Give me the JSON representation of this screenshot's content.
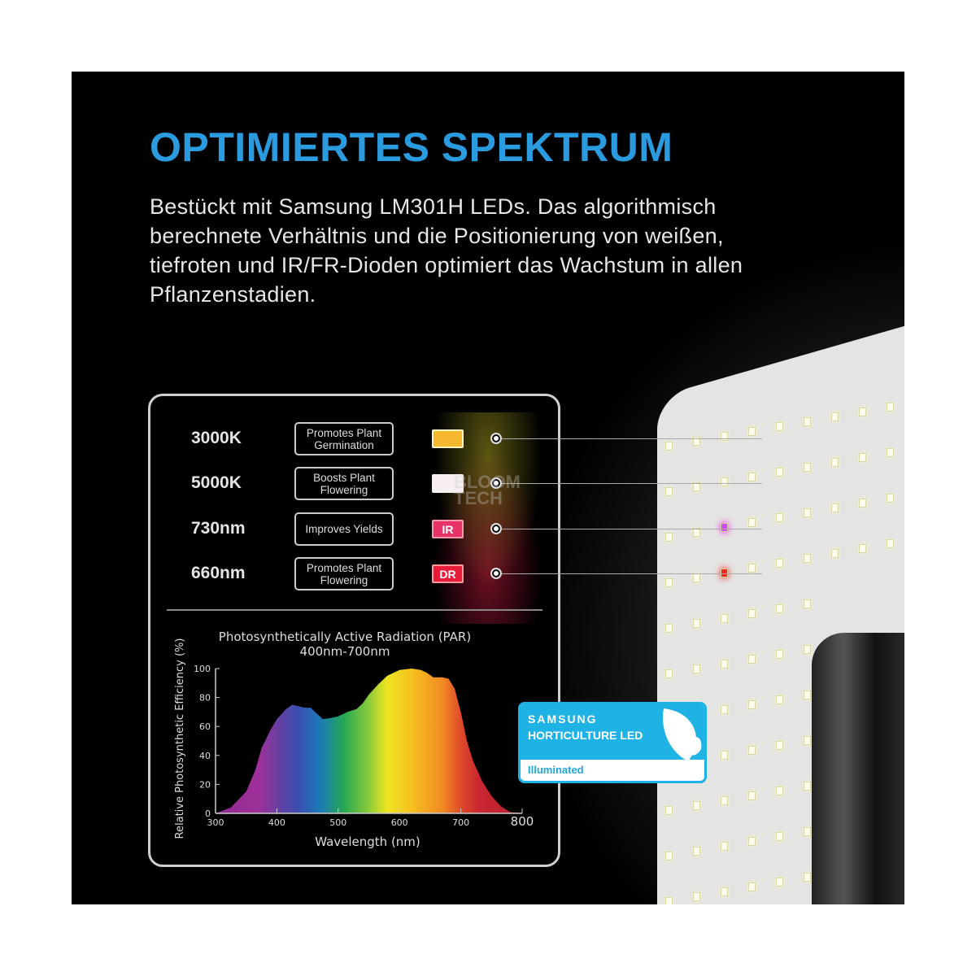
{
  "title": "OPTIMIERTES SPEKTRUM",
  "description": "Bestückt mit Samsung LM301H LEDs. Das algorithmisch berechnete Verhältnis und die Positionierung von weißen, tiefroten und IR/FR-Dioden optimiert das Wachstum in allen Pflanzenstadien.",
  "title_color": "#2b9be0",
  "diodes": [
    {
      "label": "3000K",
      "benefit": "Promotes Plant Germination",
      "chip": "",
      "color": "#f5b82e"
    },
    {
      "label": "5000K",
      "benefit": "Boosts Plant Flowering",
      "chip": "",
      "color": "#f6eef2"
    },
    {
      "label": "730nm",
      "benefit": "Improves Yields",
      "chip": "IR",
      "color": "#e8336a"
    },
    {
      "label": "660nm",
      "benefit": "Promotes Plant Flowering",
      "chip": "DR",
      "color": "#e81c3a"
    }
  ],
  "watermark": "BLOOM TECH",
  "badge": {
    "brand": "SAMSUNG",
    "line": "HORTICULTURE LED",
    "sub": "Illuminated",
    "color": "#1fb2e4"
  },
  "chart_data": {
    "type": "area",
    "title": "Photosynthetically Active Radiation (PAR)",
    "subtitle": "400nm-700nm",
    "xlabel": "Wavelength (nm)",
    "ylabel": "Relative Photosynthetic Efficiency (%)",
    "xlim": [
      300,
      800
    ],
    "ylim": [
      0,
      100
    ],
    "xticks": [
      300,
      400,
      500,
      600,
      700,
      800
    ],
    "yticks": [
      0,
      20,
      40,
      60,
      80,
      100
    ],
    "x": [
      300,
      325,
      350,
      365,
      375,
      390,
      400,
      415,
      425,
      435,
      445,
      455,
      465,
      475,
      490,
      500,
      515,
      530,
      540,
      550,
      565,
      580,
      600,
      620,
      635,
      645,
      655,
      670,
      680,
      690,
      695,
      700,
      710,
      720,
      735,
      750,
      765,
      780,
      800
    ],
    "y": [
      0,
      4,
      15,
      30,
      45,
      58,
      65,
      72,
      75,
      74,
      73,
      73,
      69,
      65,
      66,
      67,
      70,
      72,
      76,
      82,
      89,
      95,
      99,
      100,
      99,
      97,
      94,
      94,
      93,
      86,
      78,
      70,
      50,
      36,
      22,
      12,
      5,
      1,
      0
    ]
  }
}
